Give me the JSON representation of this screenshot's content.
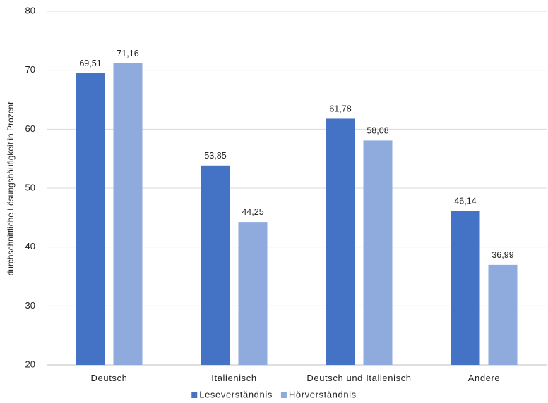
{
  "chart_data": {
    "type": "bar",
    "title": "",
    "xlabel": "",
    "ylabel": "durchschnittliche Lösungshäufigkeit in Prozent",
    "ylim": [
      20,
      80
    ],
    "yticks": [
      20,
      30,
      40,
      50,
      60,
      70,
      80
    ],
    "grid": true,
    "legend_position": "bottom",
    "categories": [
      "Deutsch",
      "Italienisch",
      "Deutsch und Italienisch",
      "Andere"
    ],
    "series": [
      {
        "name": "Leseverständnis",
        "color": "#4472C4",
        "values": [
          69.51,
          53.85,
          61.78,
          46.14
        ],
        "labels": [
          "69,51",
          "53,85",
          "61,78",
          "46,14"
        ]
      },
      {
        "name": "Hörverständnis",
        "color": "#8FAADC",
        "values": [
          71.16,
          44.25,
          58.08,
          36.99
        ],
        "labels": [
          "71,16",
          "44,25",
          "58,08",
          "36,99"
        ]
      }
    ]
  }
}
